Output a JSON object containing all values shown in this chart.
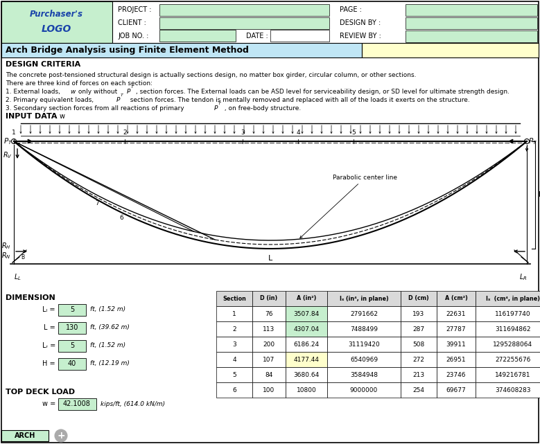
{
  "title": "Arch Bridge Analysis using Finite Element Method",
  "header_logo_line1": "Purchaser's",
  "header_logo_line2": "LOGO",
  "header_fields_left": [
    "PROJECT :",
    "CLIENT :",
    "JOB NO. :"
  ],
  "header_fields_right": [
    "PAGE :",
    "DESIGN BY :",
    "REVIEW BY :"
  ],
  "header_date": "DATE :",
  "design_criteria_title": "DESIGN CRITERIA",
  "input_data_title": "INPUT DATA",
  "dimension_title": "DIMENSION",
  "dimension_rows": [
    {
      "label": "Lₗ =",
      "value": "5",
      "unit": "ft, (1.52 m)"
    },
    {
      "label": "L =",
      "value": "130",
      "unit": "ft, (39.62 m)"
    },
    {
      "label": "Lᵣ =",
      "value": "5",
      "unit": "ft, (1.52 m)"
    },
    {
      "label": "H =",
      "value": "40",
      "unit": "ft, (12.19 m)"
    }
  ],
  "top_deck_load_title": "TOP DECK LOAD",
  "top_deck_load_value": "42.1008",
  "top_deck_load_unit": "kips/ft, (614.0 kN/m)",
  "table_headers": [
    "Section",
    "D (in)",
    "A (in²)",
    "Iₓ (in⁴, in plane)",
    "D (cm)",
    "A (cm²)",
    "Iₓ  (cm⁴, in plane)"
  ],
  "table_data": [
    [
      1,
      76,
      "3507.84",
      "2791662",
      193,
      "22631",
      "116197740"
    ],
    [
      2,
      113,
      "4307.04",
      "7488499",
      287,
      "27787",
      "311694862"
    ],
    [
      3,
      200,
      "6186.24",
      "31119420",
      508,
      "39911",
      "1295288064"
    ],
    [
      4,
      107,
      "4177.44",
      "6540969",
      272,
      "26951",
      "272255676"
    ],
    [
      5,
      84,
      "3680.64",
      "3584948",
      213,
      "23746",
      "149216781"
    ],
    [
      6,
      100,
      "10800",
      "9000000",
      254,
      "69677",
      "374608283"
    ]
  ],
  "row1_col2_color": "#c6efce",
  "row2_col2_color": "#c6efce",
  "row4_col2_color": "#ffffcc",
  "bg_header_green": "#c6efce",
  "bg_title_blue": "#c0e6f5",
  "bg_title_yellow": "#ffffcc",
  "bg_white": "#ffffff",
  "cell_green": "#c6efce",
  "cell_yellow": "#ffffcc"
}
